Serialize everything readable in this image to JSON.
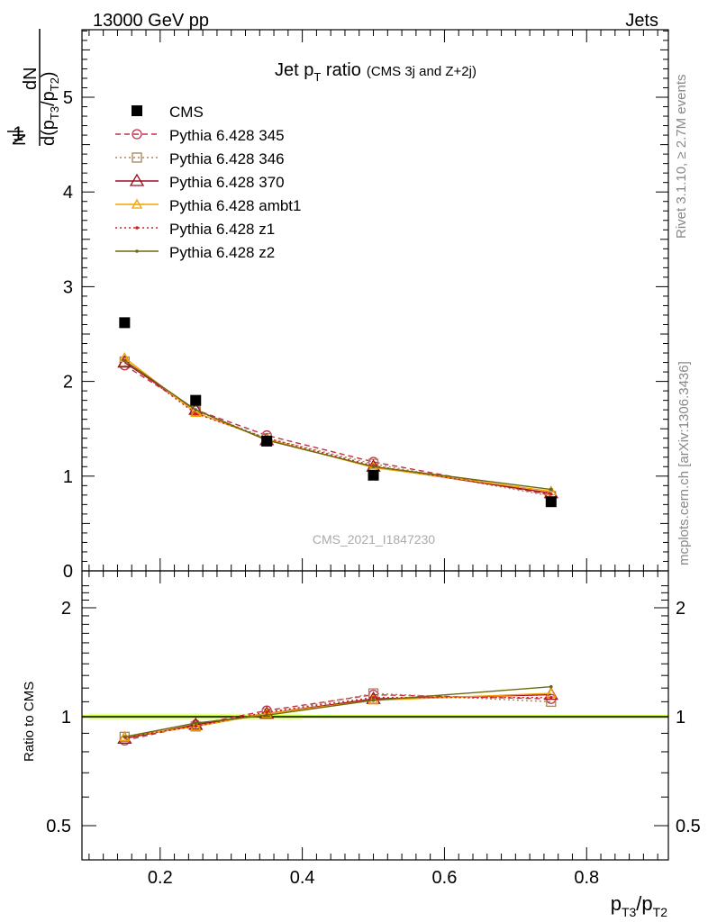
{
  "header": {
    "left": "13000 GeV pp",
    "right": "Jets"
  },
  "side_text": {
    "rivet": "Rivet 3.1.10, ≥ 2.7M events",
    "mcplots": "mcplots.cern.ch [arXiv:1306.3436]"
  },
  "watermark": "CMS_2021_I1847230",
  "title": {
    "main": "Jet p",
    "main_sub": "T",
    "main_after": " ratio",
    "small": "(CMS 3j and Z+2j)"
  },
  "colors": {
    "data": "#000000",
    "p345": "#c0304a",
    "p346": "#a8865a",
    "p370": "#9a1020",
    "ambt1": "#f5a000",
    "z1": "#d02020",
    "z2": "#6b6a10",
    "band": "#ccff33"
  },
  "chart_data": [
    {
      "type": "line",
      "panel": "main",
      "ylabel": "1/N dN/d(pT3/pT2)",
      "ylim": [
        0,
        5.8
      ],
      "xlim": [
        0.09,
        0.915
      ],
      "yticks": [
        0,
        1,
        2,
        3,
        4,
        5
      ],
      "x": [
        0.15,
        0.25,
        0.35,
        0.5,
        0.75
      ],
      "legend": [
        {
          "name": "CMS",
          "key": "cms"
        },
        {
          "name": "Pythia 6.428 345",
          "key": "p345"
        },
        {
          "name": "Pythia 6.428 346",
          "key": "p346"
        },
        {
          "name": "Pythia 6.428 370",
          "key": "p370"
        },
        {
          "name": "Pythia 6.428 ambt1",
          "key": "ambt1"
        },
        {
          "name": "Pythia 6.428 z1",
          "key": "z1"
        },
        {
          "name": "Pythia 6.428 z2",
          "key": "z2"
        }
      ],
      "series": [
        {
          "key": "cms",
          "values": [
            2.62,
            1.8,
            1.37,
            1.01,
            0.73
          ]
        },
        {
          "key": "p345",
          "values": [
            2.17,
            1.7,
            1.43,
            1.15,
            0.8
          ]
        },
        {
          "key": "p346",
          "values": [
            2.21,
            1.69,
            1.4,
            1.13,
            0.79
          ]
        },
        {
          "key": "p370",
          "values": [
            2.2,
            1.7,
            1.38,
            1.1,
            0.82
          ]
        },
        {
          "key": "ambt1",
          "values": [
            2.25,
            1.67,
            1.39,
            1.09,
            0.84
          ]
        },
        {
          "key": "z1",
          "values": [
            2.22,
            1.66,
            1.4,
            1.11,
            0.81
          ]
        },
        {
          "key": "z2",
          "values": [
            2.22,
            1.7,
            1.38,
            1.1,
            0.86
          ]
        }
      ]
    },
    {
      "type": "line",
      "panel": "ratio",
      "ylabel": "Ratio to CMS",
      "ylim": [
        0.4,
        2.3
      ],
      "xlim": [
        0.09,
        0.915
      ],
      "yticks": [
        0.5,
        1,
        2
      ],
      "ytick_labels": [
        "0.5",
        "1",
        "2"
      ],
      "xticks": [
        0.2,
        0.4,
        0.6,
        0.8
      ],
      "xtick_labels": [
        "0.2",
        "0.4",
        "0.6",
        "0.8"
      ],
      "xlabel": "pT3/pT2",
      "x": [
        0.15,
        0.25,
        0.35,
        0.5,
        0.75
      ],
      "series": [
        {
          "key": "p345",
          "values": [
            0.86,
            0.95,
            1.04,
            1.15,
            1.12
          ]
        },
        {
          "key": "p346",
          "values": [
            0.88,
            0.94,
            1.02,
            1.16,
            1.1
          ]
        },
        {
          "key": "p370",
          "values": [
            0.87,
            0.95,
            1.02,
            1.12,
            1.15
          ]
        },
        {
          "key": "ambt1",
          "values": [
            0.88,
            0.94,
            1.02,
            1.11,
            1.16
          ]
        },
        {
          "key": "z1",
          "values": [
            0.88,
            0.94,
            1.03,
            1.13,
            1.13
          ]
        },
        {
          "key": "z2",
          "values": [
            0.88,
            0.96,
            1.01,
            1.11,
            1.21
          ]
        }
      ]
    }
  ]
}
